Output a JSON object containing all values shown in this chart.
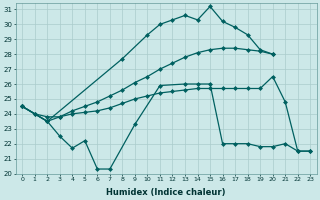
{
  "xlabel": "Humidex (Indice chaleur)",
  "bg_color": "#cce8e8",
  "grid_color": "#aacccc",
  "line_color": "#006060",
  "ylim": [
    20,
    31
  ],
  "yticks": [
    20,
    21,
    22,
    23,
    24,
    25,
    26,
    27,
    28,
    29,
    30,
    31
  ],
  "xlim": [
    0,
    23
  ],
  "xticks": [
    0,
    1,
    2,
    3,
    4,
    5,
    6,
    7,
    8,
    9,
    10,
    11,
    12,
    13,
    14,
    15,
    16,
    17,
    18,
    19,
    20,
    21,
    22,
    23
  ],
  "line_a_x": [
    0,
    2,
    3,
    4,
    5,
    6,
    7,
    8,
    9,
    10,
    11,
    12,
    13,
    14,
    15,
    16,
    17,
    18,
    19,
    20
  ],
  "line_a_y": [
    24.5,
    23.5,
    23.8,
    24.2,
    24.5,
    24.8,
    25.2,
    25.6,
    26.1,
    26.5,
    27.0,
    27.4,
    27.8,
    28.1,
    28.3,
    28.4,
    28.4,
    28.3,
    28.2,
    28.0
  ],
  "line_b_x": [
    0,
    1,
    2,
    3,
    4,
    5,
    6,
    7,
    8,
    9,
    10,
    11,
    12,
    13,
    14,
    15,
    16,
    17,
    18,
    19,
    20,
    21,
    22,
    23
  ],
  "line_b_y": [
    24.5,
    24.0,
    23.8,
    23.8,
    24.0,
    24.1,
    24.2,
    24.4,
    24.7,
    25.0,
    25.2,
    25.4,
    25.5,
    25.6,
    25.7,
    25.7,
    25.7,
    25.7,
    25.7,
    25.7,
    26.5,
    24.8,
    21.5,
    21.5
  ],
  "line_c_x": [
    0,
    2,
    8,
    10,
    11,
    12,
    13,
    14,
    15,
    16,
    17,
    18,
    19,
    20
  ],
  "line_c_y": [
    24.5,
    23.5,
    27.7,
    29.3,
    30.0,
    30.3,
    30.6,
    30.3,
    31.2,
    30.2,
    29.8,
    29.3,
    28.3,
    28.0
  ],
  "line_d_x": [
    0,
    1,
    2,
    3,
    4,
    5,
    6,
    7,
    9,
    11,
    13,
    14,
    15,
    16,
    17,
    18,
    19,
    20,
    21,
    22,
    23
  ],
  "line_d_y": [
    24.5,
    24.0,
    23.5,
    22.5,
    21.7,
    22.2,
    20.3,
    20.3,
    23.3,
    25.9,
    26.0,
    26.0,
    26.0,
    22.0,
    22.0,
    22.0,
    21.8,
    21.8,
    22.0,
    21.5,
    21.5
  ]
}
